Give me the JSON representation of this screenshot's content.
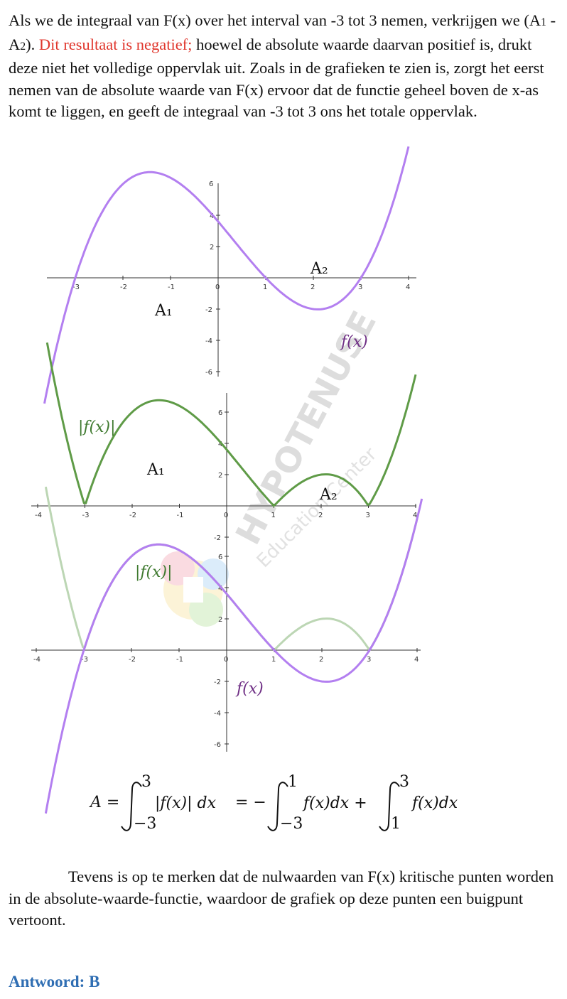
{
  "intro": {
    "part1": "Als we de integraal van F(x) over het interval van -3 tot 3 nemen, verkrijgen we (A",
    "sub1": "1",
    "part2": " - A",
    "sub2": "2",
    "part3": "). ",
    "highlight": "Dit resultaat is negatief;",
    "part4": " hoewel de absolute waarde daarvan positief is, drukt deze niet het volledige oppervlak uit.    Zoals in de grafieken te zien is, zorgt het eerst nemen van de absolute waarde van F(x) ervoor dat de functie geheel boven de x-as komt te liggen, en geeft de integraal van -3 tot 3 ons het totale oppervlak."
  },
  "graphs": {
    "colors": {
      "f": "#b37ff0",
      "abs_f": "#5f9b47",
      "f_label": "#6f2f85",
      "abs_label": "#3f7a2f"
    },
    "graph1": {
      "x_ticks": [
        "-3",
        "-2",
        "-1",
        "0",
        "1",
        "2",
        "3",
        "4"
      ],
      "y_ticks": [
        "4",
        "2",
        "-2",
        "-4",
        "-6"
      ],
      "region_labels": {
        "a1": "A₁",
        "a2": "A₂"
      },
      "curve_label": "f(x)"
    },
    "graph2": {
      "x_ticks": [
        "-4",
        "-3",
        "-2",
        "-1",
        "0",
        "1",
        "2",
        "3",
        "4"
      ],
      "y_ticks": [
        "6",
        "4",
        "2",
        "-2"
      ],
      "region_labels": {
        "a1": "A₁",
        "a2": "A₂"
      },
      "curve_label": "|f(x)|"
    },
    "graph3": {
      "x_ticks": [
        "-4",
        "-3",
        "-2",
        "-1",
        "0",
        "1",
        "2",
        "3",
        "4"
      ],
      "y_ticks": [
        "6",
        "4",
        "2",
        "-2",
        "-4",
        "-6"
      ],
      "labels": {
        "abs": "|f(x)|",
        "f": "f(x)"
      }
    },
    "watermark": {
      "line1": "HYPOTENUSE",
      "line2": "Education Center"
    }
  },
  "formula": {
    "lhs": "A =",
    "int1_upper": "3",
    "int1_lower": "−3",
    "int1_body": "|f(x)| dx",
    "eq": "= −",
    "int2_upper": "1",
    "int2_lower": "−3",
    "int2_body": "f(x)dx +",
    "int3_upper": "3",
    "int3_lower": "1",
    "int3_body": "f(x)dx"
  },
  "outro": "Tevens is op te merken dat de nulwaarden van F(x) kritische punten worden in de absolute-waarde-functie, waardoor de grafiek op deze punten een buigpunt vertoont.",
  "answer": "Antwoord: B"
}
